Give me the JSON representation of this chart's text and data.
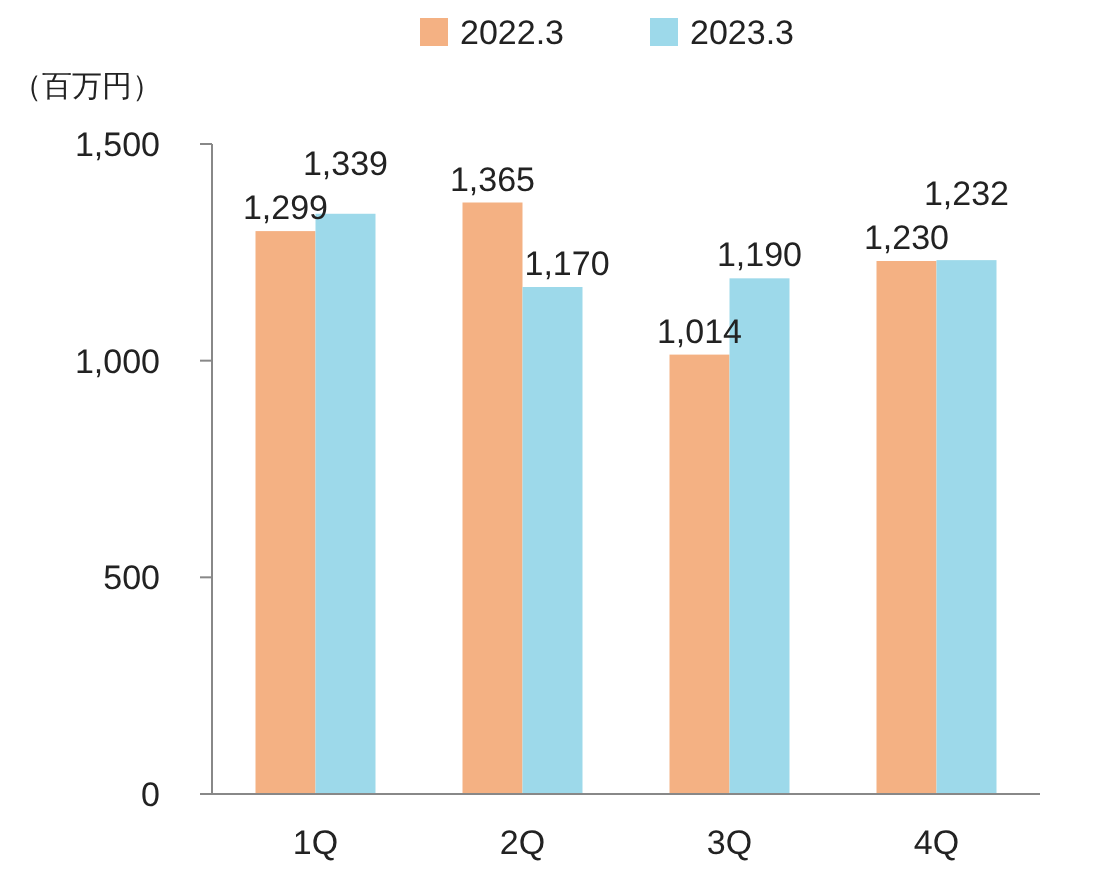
{
  "chart_data": {
    "type": "bar",
    "ylabel": "（百万円）",
    "categories": [
      "1Q",
      "2Q",
      "3Q",
      "4Q"
    ],
    "series": [
      {
        "name": "2022.3",
        "color": "#f4b183",
        "values": [
          1299,
          1365,
          1014,
          1230
        ],
        "value_labels": [
          "1,299",
          "1,365",
          "1,014",
          "1,230"
        ]
      },
      {
        "name": "2023.3",
        "color": "#9dd9ea",
        "values": [
          1339,
          1170,
          1190,
          1232
        ],
        "value_labels": [
          "1,339",
          "1,170",
          "1,190",
          "1,232"
        ]
      }
    ],
    "ylim": [
      0,
      1500
    ],
    "yticks": [
      0,
      {
        "value": 500,
        "label": "500"
      },
      {
        "value": 1000,
        "label": "1,000"
      },
      {
        "value": 1500,
        "label": "1,500"
      }
    ],
    "grid": false,
    "legend": "top"
  }
}
